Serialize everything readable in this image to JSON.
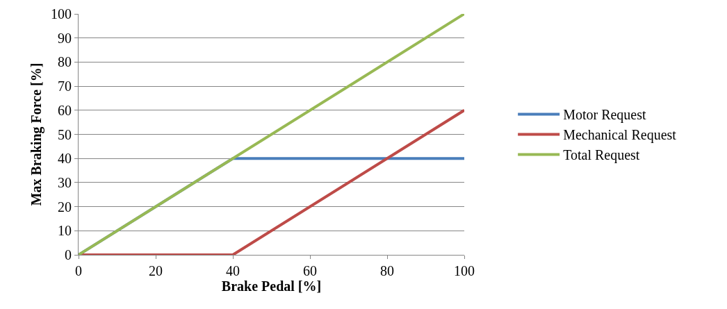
{
  "chart_data": {
    "type": "line",
    "xlabel": "Brake Pedal [%]",
    "ylabel": "Max Braking Force [%]",
    "xlim": [
      0,
      100
    ],
    "xticks": [
      0,
      20,
      40,
      60,
      80,
      100
    ],
    "ylim": [
      0,
      100
    ],
    "yticks": [
      0,
      10,
      20,
      30,
      40,
      50,
      60,
      70,
      80,
      90,
      100
    ],
    "grid": "y",
    "legend": "right",
    "marker": "none",
    "line_style": "solid",
    "series": [
      {
        "name": "Motor Request",
        "color": "#4a7ebb",
        "x": [
          0,
          40,
          100
        ],
        "values": [
          0,
          40,
          40
        ]
      },
      {
        "name": "Mechanical Request",
        "color": "#be4b48",
        "x": [
          0,
          40,
          100
        ],
        "values": [
          0,
          0,
          60
        ]
      },
      {
        "name": "Total Request",
        "color": "#98b954",
        "x": [
          0,
          100
        ],
        "values": [
          0,
          100
        ]
      }
    ]
  }
}
